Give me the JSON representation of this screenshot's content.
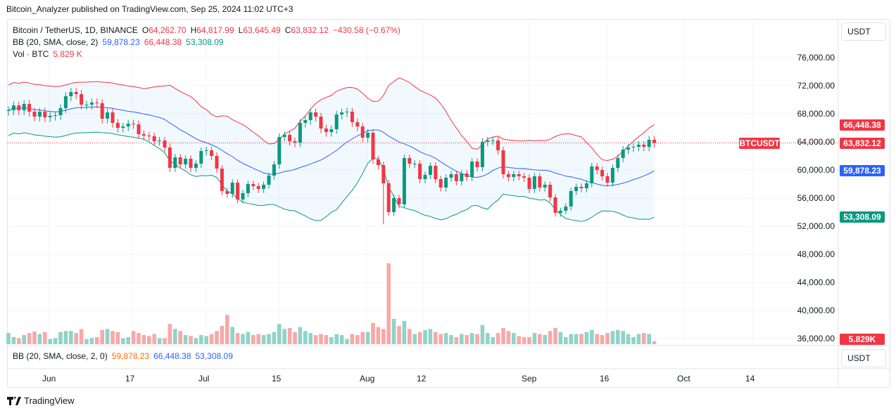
{
  "header": {
    "published": "Bitcoin_Analyzer published on TradingView.com, Sep 25, 2024 11:02 UTC+3"
  },
  "legend": {
    "symbol": "Bitcoin / TetherUS, 1D, BINANCE",
    "o_label": "O",
    "o": "64,262.70",
    "h_label": "H",
    "h": "64,817.99",
    "l_label": "L",
    "l": "63,645.49",
    "c_label": "C",
    "c": "63,832.12",
    "change": "−430.58 (−0.67%)",
    "bb_label": "BB (20, SMA, close, 2)",
    "bb_mid": "59,878.23",
    "bb_upper": "66,448.38",
    "bb_lower": "53,308.09",
    "vol_label": "Vol · BTC",
    "vol": "5.829 K"
  },
  "pane2": {
    "label": "BB (20, SMA, close, 2, 0)",
    "v1": "59,878.23",
    "v2": "66,448.38",
    "v3": "53,308.09",
    "currency": "USDT"
  },
  "price_axis": {
    "currency": "USDT",
    "ticks": [
      "76,000.00",
      "72,000.00",
      "68,000.00",
      "64,000.00",
      "60,000.00",
      "56,000.00",
      "52,000.00",
      "48,000.00",
      "44,000.00",
      "40,000.00",
      "36,000.00"
    ],
    "tags": {
      "upper": "66,448.38",
      "last": "63,832.12",
      "symbol": "BTCUSDT",
      "mid": "59,878.23",
      "lower": "53,308.09",
      "volume": "5.829K"
    }
  },
  "time_axis": [
    "Jun",
    "17",
    "Jul",
    "15",
    "Aug",
    "12",
    "Sep",
    "16",
    "Oct",
    "14"
  ],
  "footer": {
    "brand": "TradingView"
  },
  "colors": {
    "up": "#089981",
    "down": "#f23645",
    "bb_mid": "#2962ff",
    "bb_upper": "#f23645",
    "bb_lower": "#089981",
    "vol_up": "#8fd3c9",
    "vol_down": "#f7a9a7"
  },
  "chart_data": {
    "type": "candlestick",
    "symbol": "BTCUSDT",
    "interval": "1D",
    "start_date": "2024-05-24",
    "end_date": "2024-09-25",
    "ylim": [
      34000,
      80000
    ],
    "first_open": 68400,
    "close": [
      68500,
      69200,
      68500,
      69400,
      68300,
      67600,
      68300,
      67500,
      67700,
      67800,
      68800,
      70500,
      71100,
      70800,
      69300,
      69300,
      69600,
      69500,
      67300,
      68200,
      66700,
      66000,
      66200,
      66600,
      66500,
      65100,
      64900,
      64800,
      64100,
      64200,
      63200,
      60300,
      61800,
      60800,
      61600,
      60300,
      60900,
      62700,
      62800,
      62000,
      60200,
      57000,
      56600,
      58200,
      55800,
      56700,
      58000,
      57700,
      57300,
      57900,
      59200,
      60800,
      64700,
      65000,
      64100,
      63900,
      66700,
      67100,
      68200,
      67600,
      65900,
      65400,
      65800,
      67900,
      68200,
      68300,
      66800,
      66200,
      64600,
      65300,
      61500,
      60700,
      58100,
      54000,
      56000,
      55100,
      61700,
      60900,
      60900,
      58700,
      59300,
      60600,
      58700,
      57500,
      58900,
      59400,
      58400,
      59500,
      59000,
      61200,
      60400,
      64000,
      64200,
      64200,
      62800,
      59400,
      59000,
      59400,
      59100,
      58900,
      57300,
      59100,
      57500,
      57900,
      56100,
      53900,
      54200,
      54800,
      57000,
      57600,
      57400,
      58100,
      60500,
      60000,
      59100,
      58200,
      60300,
      61700,
      62900,
      63200,
      63300,
      63600,
      63300,
      64300,
      63832
    ],
    "volume_k_btc": [
      22,
      14,
      12,
      18,
      22,
      25,
      20,
      24,
      10,
      12,
      24,
      26,
      26,
      22,
      30,
      10,
      12,
      14,
      28,
      30,
      26,
      24,
      12,
      14,
      26,
      22,
      18,
      16,
      20,
      12,
      12,
      40,
      30,
      26,
      18,
      16,
      12,
      18,
      16,
      20,
      26,
      36,
      58,
      34,
      22,
      20,
      24,
      18,
      20,
      18,
      20,
      24,
      40,
      30,
      32,
      24,
      34,
      26,
      22,
      18,
      20,
      18,
      14,
      20,
      18,
      10,
      20,
      18,
      24,
      24,
      42,
      34,
      30,
      160,
      50,
      36,
      46,
      30,
      20,
      24,
      28,
      30,
      24,
      20,
      22,
      18,
      14,
      20,
      18,
      22,
      20,
      38,
      22,
      14,
      22,
      32,
      26,
      22,
      16,
      14,
      14,
      22,
      20,
      18,
      26,
      32,
      24,
      14,
      20,
      20,
      20,
      24,
      28,
      20,
      18,
      22,
      26,
      28,
      26,
      20,
      14,
      20,
      22,
      20,
      5.829
    ]
  }
}
